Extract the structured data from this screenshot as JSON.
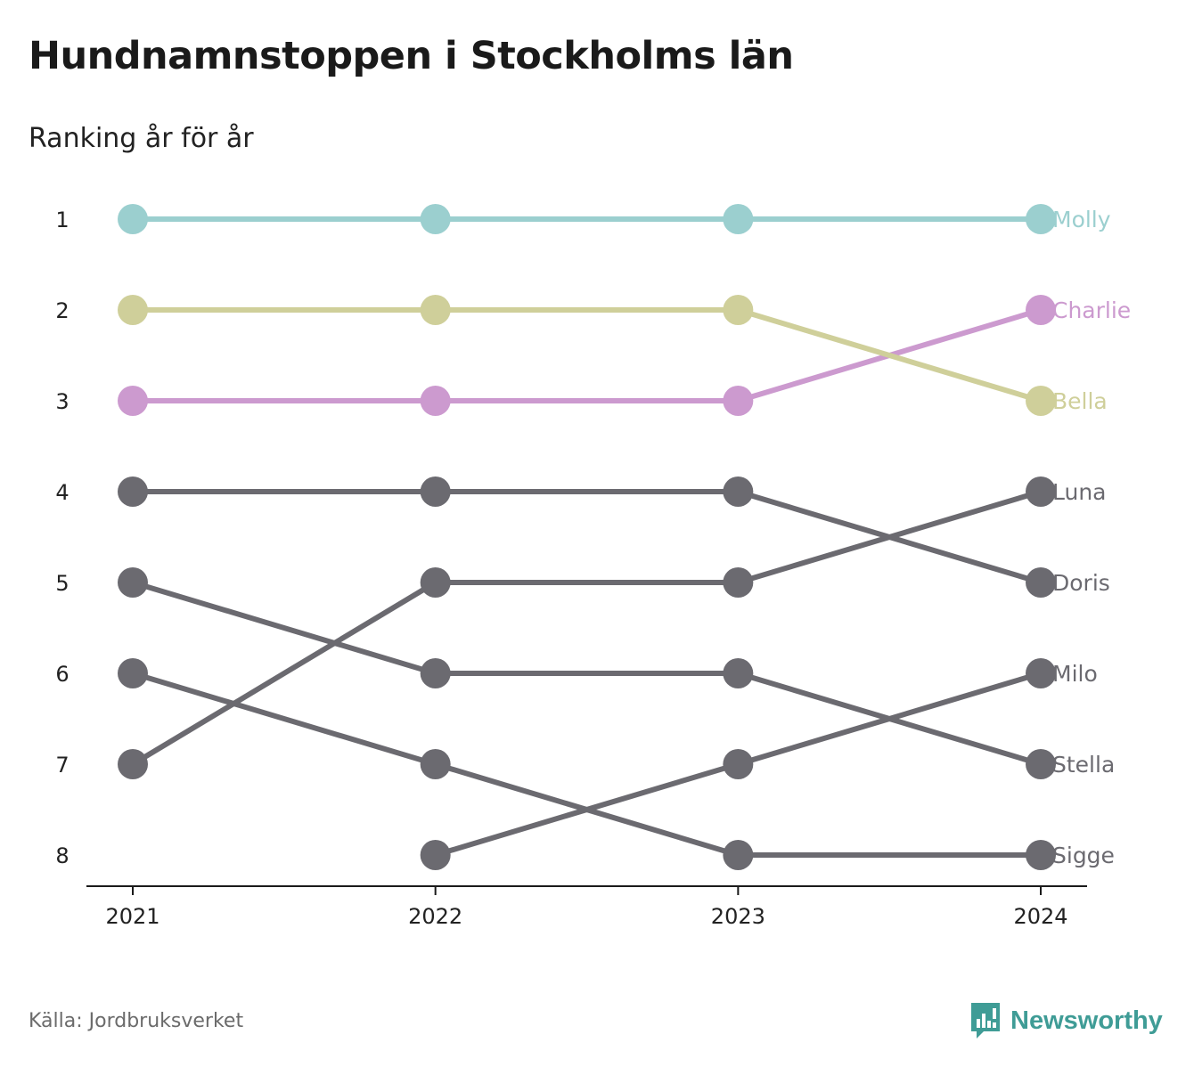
{
  "title": "Hundnamnstoppen i Stockholms län",
  "subtitle": "Ranking år för år",
  "source": "Källa: Jordbruksverket",
  "brand": {
    "name": "Newsworthy",
    "icon": "newsworthy-logo-icon",
    "color": "#3f9c96"
  },
  "chart_data": {
    "type": "line",
    "subtype": "bump",
    "x": [
      "2021",
      "2022",
      "2023",
      "2024"
    ],
    "y_ticks": [
      "1",
      "2",
      "3",
      "4",
      "5",
      "6",
      "7",
      "8"
    ],
    "ylim": [
      1,
      8
    ],
    "y_reversed": true,
    "grid": false,
    "legend": "direct labels at right end",
    "series": [
      {
        "name": "Molly",
        "color": "#9bcfcf",
        "values": [
          1,
          1,
          1,
          1
        ]
      },
      {
        "name": "Charlie",
        "color": "#cc9acf",
        "values": [
          3,
          3,
          3,
          2
        ]
      },
      {
        "name": "Bella",
        "color": "#cfcf9a",
        "values": [
          2,
          2,
          2,
          3
        ]
      },
      {
        "name": "Luna",
        "color": "#6b6a70",
        "values": [
          7,
          5,
          5,
          4
        ]
      },
      {
        "name": "Doris",
        "color": "#6b6a70",
        "values": [
          4,
          4,
          4,
          5
        ]
      },
      {
        "name": "Milo",
        "color": "#6b6a70",
        "values": [
          null,
          8,
          7,
          6
        ]
      },
      {
        "name": "Stella",
        "color": "#6b6a70",
        "values": [
          5,
          6,
          6,
          7
        ]
      },
      {
        "name": "Sigge",
        "color": "#6b6a70",
        "values": [
          6,
          7,
          8,
          8
        ]
      }
    ]
  }
}
